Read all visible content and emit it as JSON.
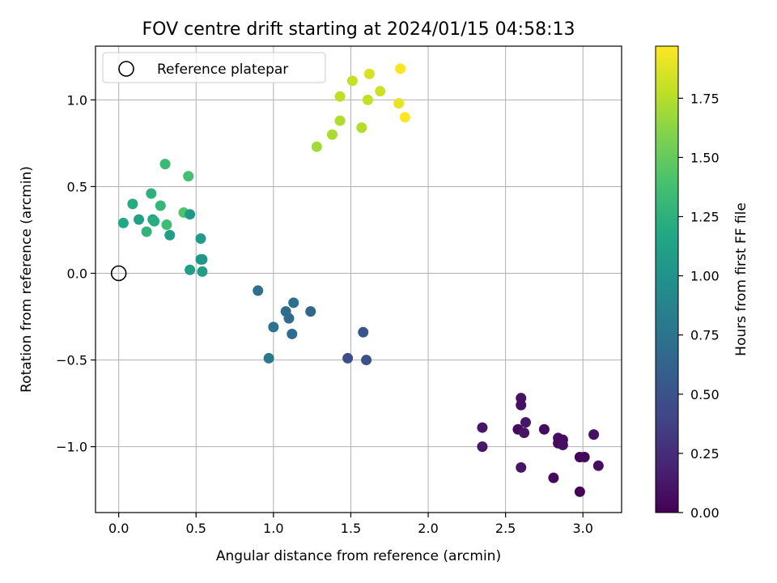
{
  "chart_data": {
    "type": "scatter",
    "title": "FOV centre drift starting at 2024/01/15 04:58:13",
    "xlabel": "Angular distance from reference (arcmin)",
    "ylabel": "Rotation from reference (arcmin)",
    "xlim": [
      -0.15,
      3.25
    ],
    "ylim": [
      -1.38,
      1.31
    ],
    "x_ticks": [
      0.0,
      0.5,
      1.0,
      1.5,
      2.0,
      2.5,
      3.0
    ],
    "x_tick_labels": [
      "0.0",
      "0.5",
      "1.0",
      "1.5",
      "2.0",
      "2.5",
      "3.0"
    ],
    "y_ticks": [
      1.0,
      0.5,
      0.0,
      -0.5,
      -1.0
    ],
    "y_tick_labels": [
      "1.0",
      "0.5",
      "0.0",
      "−0.5",
      "−1.0"
    ],
    "grid": true,
    "legend": {
      "placement": "upper-left",
      "label": "Reference platepar",
      "marker": "open-circle"
    },
    "reference_point": {
      "x": 0.0,
      "y": 0.0
    },
    "colormap": "viridis",
    "colorbar": {
      "label": "Hours from first FF file",
      "range": [
        0.0,
        1.97
      ],
      "ticks": [
        0.0,
        0.25,
        0.5,
        0.75,
        1.0,
        1.25,
        1.5,
        1.75
      ],
      "tick_labels": [
        "0.00",
        "0.25",
        "0.50",
        "0.75",
        "1.00",
        "1.25",
        "1.50",
        "1.75"
      ]
    },
    "points": [
      {
        "x": 2.35,
        "y": -0.89,
        "h": 0.12
      },
      {
        "x": 2.35,
        "y": -1.0,
        "h": 0.13
      },
      {
        "x": 2.58,
        "y": -0.9,
        "h": 0.05
      },
      {
        "x": 2.6,
        "y": -0.72,
        "h": 0.09
      },
      {
        "x": 2.6,
        "y": -0.76,
        "h": 0.08
      },
      {
        "x": 2.6,
        "y": -1.12,
        "h": 0.1
      },
      {
        "x": 2.62,
        "y": -0.92,
        "h": 0.11
      },
      {
        "x": 2.63,
        "y": -0.86,
        "h": 0.12
      },
      {
        "x": 2.75,
        "y": -0.9,
        "h": 0.06
      },
      {
        "x": 2.81,
        "y": -1.18,
        "h": 0.05
      },
      {
        "x": 2.84,
        "y": -0.95,
        "h": 0.07
      },
      {
        "x": 2.84,
        "y": -0.98,
        "h": 0.04
      },
      {
        "x": 2.87,
        "y": -0.96,
        "h": 0.05
      },
      {
        "x": 2.87,
        "y": -0.99,
        "h": 0.08
      },
      {
        "x": 2.98,
        "y": -1.06,
        "h": 0.03
      },
      {
        "x": 2.98,
        "y": -1.26,
        "h": 0.02
      },
      {
        "x": 3.01,
        "y": -1.06,
        "h": 0.04
      },
      {
        "x": 3.07,
        "y": -0.93,
        "h": 0.09
      },
      {
        "x": 3.1,
        "y": -1.11,
        "h": 0.07
      },
      {
        "x": 1.48,
        "y": -0.49,
        "h": 0.45
      },
      {
        "x": 1.58,
        "y": -0.34,
        "h": 0.52
      },
      {
        "x": 1.6,
        "y": -0.5,
        "h": 0.48
      },
      {
        "x": 0.9,
        "y": -0.1,
        "h": 0.72
      },
      {
        "x": 0.97,
        "y": -0.49,
        "h": 0.78
      },
      {
        "x": 1.0,
        "y": -0.31,
        "h": 0.76
      },
      {
        "x": 1.08,
        "y": -0.22,
        "h": 0.7
      },
      {
        "x": 1.1,
        "y": -0.26,
        "h": 0.68
      },
      {
        "x": 1.12,
        "y": -0.35,
        "h": 0.7
      },
      {
        "x": 1.13,
        "y": -0.17,
        "h": 0.72
      },
      {
        "x": 1.24,
        "y": -0.22,
        "h": 0.65
      },
      {
        "x": 0.03,
        "y": 0.29,
        "h": 1.18
      },
      {
        "x": 0.09,
        "y": 0.4,
        "h": 1.2
      },
      {
        "x": 0.13,
        "y": 0.31,
        "h": 1.12
      },
      {
        "x": 0.18,
        "y": 0.24,
        "h": 1.28
      },
      {
        "x": 0.21,
        "y": 0.46,
        "h": 1.25
      },
      {
        "x": 0.22,
        "y": 0.31,
        "h": 1.15
      },
      {
        "x": 0.23,
        "y": 0.3,
        "h": 1.22
      },
      {
        "x": 0.27,
        "y": 0.39,
        "h": 1.3
      },
      {
        "x": 0.3,
        "y": 0.63,
        "h": 1.33
      },
      {
        "x": 0.31,
        "y": 0.28,
        "h": 1.35
      },
      {
        "x": 0.33,
        "y": 0.22,
        "h": 1.1
      },
      {
        "x": 0.42,
        "y": 0.35,
        "h": 1.42
      },
      {
        "x": 0.45,
        "y": 0.56,
        "h": 1.38
      },
      {
        "x": 0.46,
        "y": 0.34,
        "h": 1.05
      },
      {
        "x": 0.46,
        "y": 0.02,
        "h": 1.1
      },
      {
        "x": 0.53,
        "y": 0.2,
        "h": 1.08
      },
      {
        "x": 0.53,
        "y": 0.08,
        "h": 1.07
      },
      {
        "x": 0.54,
        "y": 0.08,
        "h": 1.03
      },
      {
        "x": 0.54,
        "y": 0.01,
        "h": 1.09
      },
      {
        "x": 1.28,
        "y": 0.73,
        "h": 1.7
      },
      {
        "x": 1.38,
        "y": 0.8,
        "h": 1.72
      },
      {
        "x": 1.43,
        "y": 0.88,
        "h": 1.73
      },
      {
        "x": 1.43,
        "y": 1.02,
        "h": 1.78
      },
      {
        "x": 1.51,
        "y": 1.11,
        "h": 1.8
      },
      {
        "x": 1.57,
        "y": 0.84,
        "h": 1.74
      },
      {
        "x": 1.61,
        "y": 1.0,
        "h": 1.79
      },
      {
        "x": 1.62,
        "y": 1.15,
        "h": 1.85
      },
      {
        "x": 1.69,
        "y": 1.05,
        "h": 1.82
      },
      {
        "x": 1.81,
        "y": 0.98,
        "h": 1.9
      },
      {
        "x": 1.82,
        "y": 1.18,
        "h": 1.95
      },
      {
        "x": 1.85,
        "y": 0.9,
        "h": 1.97
      }
    ]
  }
}
